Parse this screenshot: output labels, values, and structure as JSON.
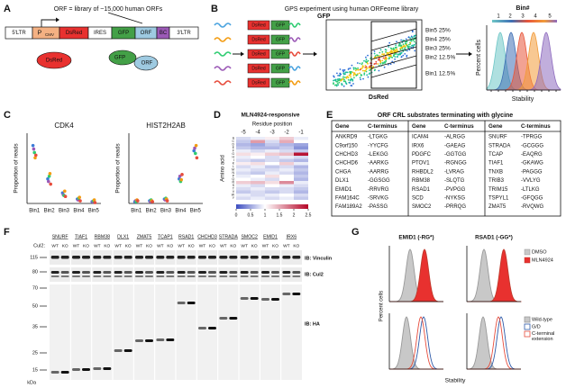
{
  "panel_a": {
    "label": "A",
    "orf_note": "ORF = library of ~15,000 human ORFs",
    "construct": [
      "5'LTR",
      "P",
      "DsRed",
      "IRES",
      "GFP",
      "ORF",
      "BC",
      "3'LTR"
    ],
    "promoter_sub": "CMV",
    "products": [
      "DsRed",
      "GFP",
      "ORF"
    ]
  },
  "panel_b": {
    "label": "B",
    "title": "GPS experiment using human ORFeome library",
    "cassette": [
      "DsRed",
      "GFP"
    ],
    "y_axis": "GFP",
    "x_axis": "DsRed",
    "bins": [
      "Bin5 25%",
      "Bin4 25%",
      "Bin3 25%",
      "Bin2 12.5%",
      "Bin1 12.5%"
    ],
    "hist_legend": "Bin#",
    "hist_bins": [
      "1",
      "2",
      "3",
      "4",
      "5"
    ],
    "hist_y": "Percent cells",
    "hist_x": "Stability"
  },
  "panel_c": {
    "label": "C"
  },
  "panel_d": {
    "label": "D"
  },
  "chart_data": [
    {
      "type": "dot",
      "title": "CDK4",
      "y_label": "Proportion of reads",
      "categories": [
        "Bin1",
        "Bin2",
        "Bin3",
        "Bin4",
        "Bin5"
      ],
      "ylim": [
        0,
        0.8
      ],
      "series": [
        {
          "color": "#3b7dd8",
          "values": [
            0.66,
            0.28,
            0.12,
            0.05,
            0.02
          ]
        },
        {
          "color": "#9b59b6",
          "values": [
            0.62,
            0.25,
            0.1,
            0.04,
            0.02
          ]
        },
        {
          "color": "#2ecc71",
          "values": [
            0.58,
            0.31,
            0.09,
            0.06,
            0.03
          ]
        },
        {
          "color": "#f39c12",
          "values": [
            0.52,
            0.34,
            0.14,
            0.07,
            0.04
          ]
        },
        {
          "color": "#e74c3c",
          "values": [
            0.55,
            0.22,
            0.08,
            0.03,
            0.01
          ]
        }
      ]
    },
    {
      "type": "dot",
      "title": "HIST2H2AB",
      "y_label": "Proportion of reads",
      "categories": [
        "Bin1",
        "Bin2",
        "Bin3",
        "Bin4",
        "Bin5"
      ],
      "ylim": [
        0,
        0.8
      ],
      "series": [
        {
          "color": "#3b7dd8",
          "values": [
            0.02,
            0.03,
            0.05,
            0.28,
            0.6
          ]
        },
        {
          "color": "#9b59b6",
          "values": [
            0.03,
            0.02,
            0.04,
            0.31,
            0.63
          ]
        },
        {
          "color": "#2ecc71",
          "values": [
            0.02,
            0.04,
            0.06,
            0.25,
            0.57
          ]
        },
        {
          "color": "#f39c12",
          "values": [
            0.04,
            0.03,
            0.05,
            0.27,
            0.66
          ]
        },
        {
          "color": "#e74c3c",
          "values": [
            0.03,
            0.02,
            0.03,
            0.33,
            0.52
          ]
        }
      ]
    },
    {
      "type": "heatmap",
      "title": "MLN4924-responsive",
      "x_label": "Residue position",
      "y_label": "Amino acid",
      "categories": [
        "-5",
        "-4",
        "-3",
        "-2",
        "-1"
      ],
      "rows": [
        "A",
        "C",
        "D",
        "E",
        "F",
        "G",
        "H",
        "I",
        "K",
        "L",
        "M",
        "N",
        "P",
        "Q",
        "R",
        "S",
        "T",
        "V",
        "W",
        "Y"
      ],
      "values": [
        [
          0.8,
          0.9,
          1.1,
          1.3,
          0.9
        ],
        [
          0.7,
          1.6,
          0.8,
          1.5,
          1.0
        ],
        [
          0.6,
          0.5,
          0.7,
          0.6,
          0.5
        ],
        [
          0.7,
          0.6,
          0.6,
          0.7,
          0.4
        ],
        [
          0.9,
          0.8,
          0.9,
          0.8,
          0.7
        ],
        [
          1.2,
          1.1,
          1.3,
          1.4,
          2.4
        ],
        [
          0.9,
          1.0,
          0.8,
          0.9,
          0.8
        ],
        [
          0.8,
          0.7,
          0.8,
          0.7,
          0.6
        ],
        [
          1.1,
          1.2,
          1.0,
          1.3,
          0.9
        ],
        [
          0.8,
          0.9,
          0.7,
          0.8,
          0.6
        ],
        [
          0.9,
          0.8,
          0.8,
          0.9,
          0.7
        ],
        [
          0.8,
          0.7,
          0.9,
          0.8,
          0.6
        ],
        [
          0.9,
          1.0,
          1.2,
          1.0,
          0.7
        ],
        [
          1.0,
          0.9,
          0.8,
          1.0,
          0.6
        ],
        [
          1.3,
          1.4,
          1.2,
          1.7,
          0.9
        ],
        [
          0.9,
          0.8,
          1.0,
          0.9,
          0.8
        ],
        [
          0.8,
          0.9,
          0.8,
          0.8,
          0.7
        ],
        [
          0.7,
          0.8,
          0.7,
          0.8,
          0.6
        ],
        [
          0.9,
          0.8,
          0.9,
          1.0,
          0.8
        ],
        [
          0.8,
          0.9,
          0.8,
          0.9,
          0.7
        ]
      ],
      "clim": [
        0,
        2.5
      ],
      "cticks": [
        0,
        0.5,
        1,
        1.5,
        2,
        2.5
      ]
    }
  ],
  "panel_e": {
    "label": "E",
    "title": "ORF CRL substrates terminating with glycine",
    "header": [
      "Gene",
      "C-terminus",
      "Gene",
      "C-terminus",
      "Gene",
      "C-terminus"
    ],
    "rows": [
      [
        "ANKRD9",
        "-LTGKG",
        "ICAM4",
        "-ALRGG",
        "SNURF",
        "-TPRGG"
      ],
      [
        "C9orf150",
        "-YYCFG",
        "IRX6",
        "-GAEAG",
        "STRADA",
        "-GCGGG"
      ],
      [
        "CHCHD3",
        "-LEKGG",
        "PDGFC",
        "-GGTGG",
        "TCAP",
        "-EAQRG"
      ],
      [
        "CHCHD6",
        "-AARKG",
        "PTOV1",
        "-RGNGG",
        "TIAF1",
        "-GKAWG"
      ],
      [
        "CHGA",
        "-AARRG",
        "RHBDL2",
        "-LVRAG",
        "TNXB",
        "-PAGGG"
      ],
      [
        "DLX1",
        "-GGSGG",
        "RBM38",
        "-SLQTG",
        "TRIB3",
        "-VVLYG"
      ],
      [
        "EMID1",
        "-RRVRG",
        "RSAD1",
        "-PVPGG",
        "TRIM15",
        "-LTLKG"
      ],
      [
        "FAM164C",
        "-SRVKG",
        "SCD",
        "-NYKSG",
        "TSPYL1",
        "-GFQGG"
      ],
      [
        "FAM189A2",
        "-PASSG",
        "SMOC2",
        "-PRRQG",
        "ZMAT5",
        "-RVQWG"
      ]
    ]
  },
  "panel_f": {
    "label": "F",
    "genes": [
      "SNURF",
      "TIAF1",
      "RBM38",
      "DLX1",
      "ZMAT5",
      "TCAP1",
      "RSAD1",
      "CHCHD3",
      "STRADA",
      "SMOC2",
      "EMID1",
      "IRX6"
    ],
    "cul2_label": "Cul2:",
    "lanes": [
      "WT",
      "KO"
    ],
    "blots": [
      "IB: Vinculin",
      "IB: Cul2",
      "IB: HA"
    ],
    "markers": [
      "115",
      "80",
      "70",
      "50",
      "35",
      "25",
      "15"
    ],
    "unit": "kDa"
  },
  "panel_g": {
    "label": "G",
    "titles": [
      "EMID1 (-RG*)",
      "RSAD1 (-GG*)"
    ],
    "legend_top": [
      "DMSO",
      "MLN4924"
    ],
    "legend_bottom": [
      "Wild-type",
      "G/D",
      "C-terminal extension"
    ],
    "y_axis": "Percent cells",
    "x_axis": "Stability"
  }
}
